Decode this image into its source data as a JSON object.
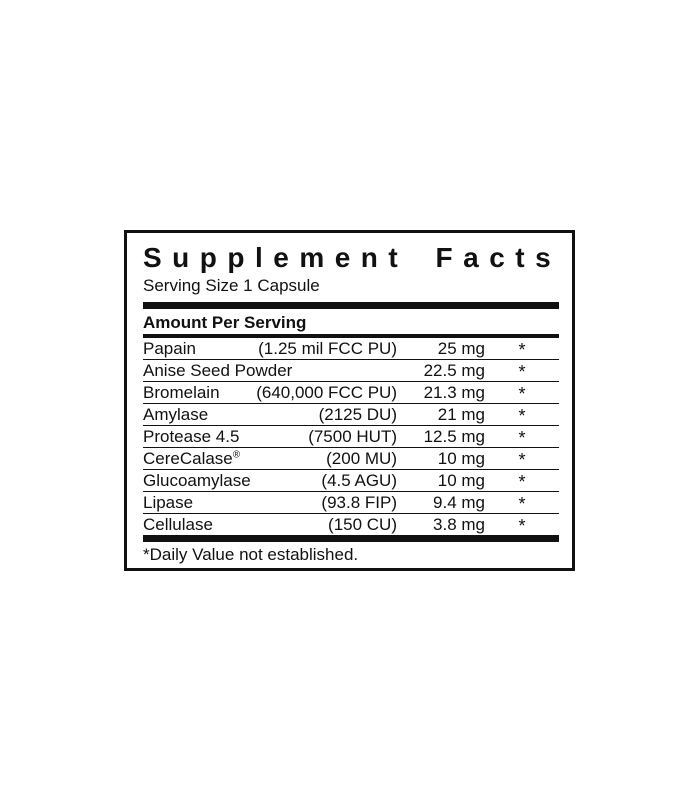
{
  "panel": {
    "title": "Supplement Facts",
    "serving_size": "Serving Size 1 Capsule",
    "amount_per_serving_label": "Amount Per Serving",
    "footnote": "*Daily Value not established.",
    "colors": {
      "ink": "#111111",
      "background": "#ffffff"
    },
    "rows": [
      {
        "name": "Papain",
        "name_suffix": "",
        "activity": "(1.25 mil FCC PU)",
        "amount": "25 mg",
        "daily_value": "*"
      },
      {
        "name": "Anise Seed Powder",
        "name_suffix": "",
        "activity": "",
        "amount": "22.5 mg",
        "daily_value": "*"
      },
      {
        "name": "Bromelain",
        "name_suffix": "",
        "activity": "(640,000 FCC PU)",
        "amount": "21.3 mg",
        "daily_value": "*"
      },
      {
        "name": "Amylase",
        "name_suffix": "",
        "activity": "(2125 DU)",
        "amount": "21 mg",
        "daily_value": "*"
      },
      {
        "name": "Protease 4.5",
        "name_suffix": "",
        "activity": "(7500 HUT)",
        "amount": "12.5 mg",
        "daily_value": "*"
      },
      {
        "name": "CereCalase",
        "name_suffix": "®",
        "activity": "(200 MU)",
        "amount": "10 mg",
        "daily_value": "*"
      },
      {
        "name": "Glucoamylase",
        "name_suffix": "",
        "activity": "(4.5 AGU)",
        "amount": "10 mg",
        "daily_value": "*"
      },
      {
        "name": "Lipase",
        "name_suffix": "",
        "activity": "(93.8 FIP)",
        "amount": "9.4 mg",
        "daily_value": "*"
      },
      {
        "name": "Cellulase",
        "name_suffix": "",
        "activity": "(150 CU)",
        "amount": "3.8 mg",
        "daily_value": "*"
      }
    ]
  }
}
